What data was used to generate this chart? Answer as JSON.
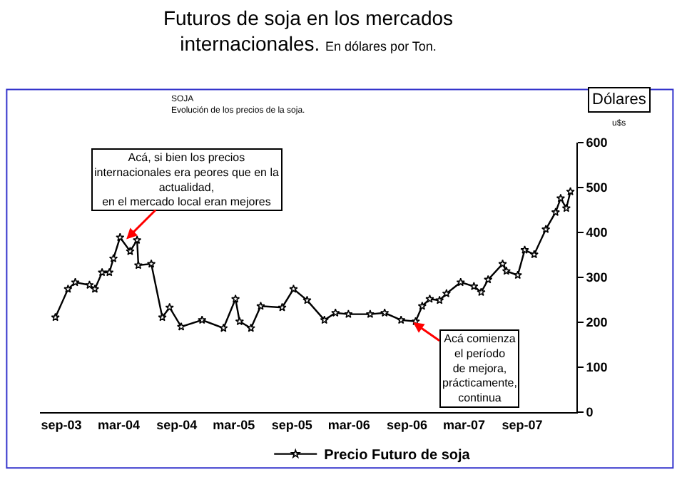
{
  "chart_data": {
    "type": "line",
    "title": "Futuros de soja en los mercados\ninternacionales.",
    "subtitle": "En dólares por Ton.",
    "ylabel": "Dólares",
    "x": [
      "2003-08-13",
      "2003-09-22",
      "2003-10-15",
      "2003-11-29",
      "2003-12-16",
      "2004-01-08",
      "2004-01-31",
      "2004-02-13",
      "2004-03-05",
      "2004-04-06",
      "2004-04-28",
      "2004-05-02",
      "2004-06-12",
      "2004-07-17",
      "2004-08-09",
      "2004-09-15",
      "2004-11-20",
      "2005-01-27",
      "2005-03-06",
      "2005-03-19",
      "2005-04-24",
      "2005-05-25",
      "2005-08-01",
      "2005-09-06",
      "2005-10-19",
      "2005-12-13",
      "2006-01-17",
      "2006-02-27",
      "2006-05-07",
      "2006-06-22",
      "2006-08-13",
      "2006-09-28",
      "2006-10-19",
      "2006-11-12",
      "2006-12-13",
      "2007-01-04",
      "2007-02-18",
      "2007-04-01",
      "2007-04-24",
      "2007-05-16",
      "2007-07-01",
      "2007-07-13",
      "2007-08-18",
      "2007-09-09",
      "2007-10-09",
      "2007-11-15",
      "2007-12-16",
      "2008-01-01",
      "2008-01-19",
      "2008-02-01"
    ],
    "series": [
      {
        "name": "Precio Futuro de soja",
        "color": "#000000",
        "values": [
          211,
          274,
          289,
          283,
          274,
          311,
          311,
          342,
          389,
          358,
          383,
          327,
          330,
          211,
          233,
          190,
          205,
          187,
          252,
          202,
          187,
          236,
          233,
          274,
          249,
          205,
          221,
          218,
          218,
          221,
          205,
          202,
          236,
          252,
          249,
          264,
          289,
          280,
          267,
          295,
          330,
          314,
          305,
          361,
          351,
          407,
          445,
          476,
          454,
          491
        ]
      }
    ],
    "xlim": [
      "2003-06-25",
      "2008-02-20"
    ],
    "xticks": [
      {
        "value": "2003-09-01",
        "label": "sep-03"
      },
      {
        "value": "2004-03-01",
        "label": "mar-04"
      },
      {
        "value": "2004-09-01",
        "label": "sep-04"
      },
      {
        "value": "2005-03-01",
        "label": "mar-05"
      },
      {
        "value": "2005-09-01",
        "label": "sep-05"
      },
      {
        "value": "2006-03-01",
        "label": "mar-06"
      },
      {
        "value": "2006-09-01",
        "label": "sep-06"
      },
      {
        "value": "2007-03-01",
        "label": "mar-07"
      },
      {
        "value": "2007-09-01",
        "label": "sep-07"
      }
    ],
    "ylim": [
      0,
      600
    ],
    "yticks": [
      0,
      100,
      200,
      300,
      400,
      500,
      600
    ],
    "annotations": [
      "SOJA",
      "Evolución de los precios de la soja.",
      "u$s",
      {
        "text": "Acá, si bien los precios\ninternacionales era peores que en la\nactualidad,\nen el mercado local eran mejores",
        "x": "2004-03-25",
        "y": 385
      },
      {
        "text": "Acá comienza\nel período\nde mejora,\nprácticamente,\ncontinua",
        "x": "2006-09-20",
        "y": 200
      }
    ],
    "grid": false,
    "legend": "bottom",
    "marker": "star",
    "line_style": "solid"
  }
}
